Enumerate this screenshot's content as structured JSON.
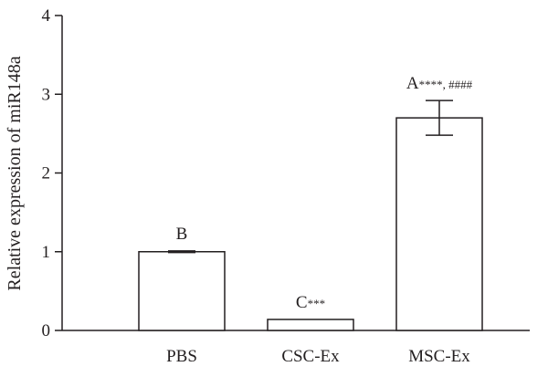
{
  "chart_data": {
    "type": "bar",
    "title": "",
    "xlabel": "",
    "ylabel": "Relative expression of miR148a",
    "ylim": [
      0,
      4
    ],
    "yticks": [
      "0",
      "1",
      "2",
      "3",
      "4"
    ],
    "grid": false,
    "categories": [
      "PBS",
      "CSC-Ex",
      "MSC-Ex"
    ],
    "values": [
      1.0,
      0.14,
      2.7
    ],
    "errors": [
      0.01,
      0.0,
      0.22
    ],
    "annotations": [
      {
        "letter": "B",
        "marks": ""
      },
      {
        "letter": "C",
        "marks": "***"
      },
      {
        "letter": "A",
        "marks": "****, ####"
      }
    ],
    "colors": {
      "bar_fill": "#ffffff",
      "stroke": "#231f20"
    }
  }
}
